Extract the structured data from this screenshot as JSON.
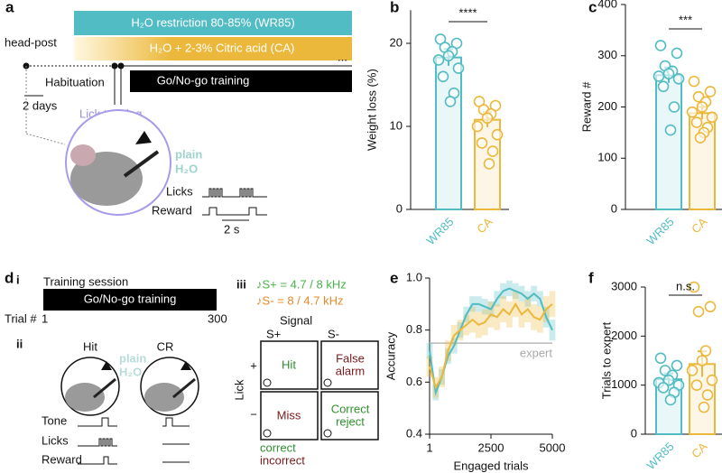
{
  "panel_a": {
    "label": "a",
    "restriction": "H₂O restriction 80-85% (WR85)",
    "citric": "H₂O + 2-3% Citric acid (CA)",
    "head_post": "head-post",
    "ellipsis": "...",
    "habituation": "Habituation",
    "scale_days": "2 days",
    "lick_training": "Lick training",
    "training": "Go/No-go training",
    "plain": "plain",
    "water": "H₂O",
    "licks": "Licks",
    "reward": "Reward",
    "scale_time": "2 s"
  },
  "panel_d": {
    "label": "d",
    "sub_i": "i",
    "session": "Training session",
    "training": "Go/No-go training",
    "trial": "Trial #",
    "trial_start": 1,
    "trial_end": 300,
    "sub_ii": "ii",
    "hit": "Hit",
    "cr": "CR",
    "plain": "plain",
    "water": "H₂O",
    "tone": "Tone",
    "licks": "Licks",
    "reward": "Reward",
    "sub_iii": "iii",
    "s_plus_freq": "♪S+ = 4.7 / 8 kHz",
    "s_minus_freq": "♪S- = 8 / 4.7 kHz",
    "signal": "Signal",
    "s_plus": "S+",
    "s_minus": "S-",
    "lick": "Lick",
    "lick_yes": "+",
    "lick_no": "−",
    "cells": [
      [
        "Hit"
      ],
      [
        "False",
        "alarm"
      ],
      [
        "Miss"
      ],
      [
        "Correct",
        "reject"
      ]
    ],
    "correct": "correct",
    "incorrect": "incorrect"
  },
  "chart_data": [
    {
      "type": "bar",
      "panel_label": "b",
      "ylabel": "Weight loss (%)",
      "categories": [
        "WR85",
        "CA"
      ],
      "colors": [
        "#52bcc4",
        "#ecb83c"
      ],
      "values": [
        18.3,
        10.8
      ],
      "errors": [
        1.0,
        0.9
      ],
      "points": [
        [
          20.5,
          20,
          19.5,
          19,
          18.5,
          18,
          17,
          16,
          14,
          13
        ],
        [
          13,
          12.5,
          12,
          11.5,
          11,
          10,
          9,
          8,
          7,
          5.5
        ]
      ],
      "ylim": [
        0,
        24
      ],
      "yticks": [
        0,
        10,
        20
      ],
      "significance": "****"
    },
    {
      "type": "bar",
      "panel_label": "c",
      "ylabel": "Reward #",
      "categories": [
        "WR85",
        "CA"
      ],
      "colors": [
        "#52bcc4",
        "#ecb83c"
      ],
      "values": [
        262,
        188
      ],
      "errors": [
        15,
        12
      ],
      "points": [
        [
          320,
          305,
          280,
          270,
          265,
          260,
          255,
          240,
          200,
          155
        ],
        [
          250,
          230,
          220,
          210,
          200,
          190,
          180,
          170,
          160,
          150,
          140
        ]
      ],
      "ylim": [
        0,
        400
      ],
      "yticks": [
        0,
        100,
        200,
        300,
        400
      ],
      "significance": "***"
    },
    {
      "type": "line",
      "panel_label": "e",
      "xlabel": "Engaged trials",
      "ylabel": "Accuracy",
      "x": [
        1,
        250,
        500,
        750,
        1000,
        1250,
        1500,
        1750,
        2000,
        2250,
        2500,
        2750,
        3000,
        3250,
        3500,
        3750,
        4000,
        4250,
        4500,
        4750,
        5000
      ],
      "series": [
        {
          "name": "WR85",
          "color": "#52bcc4",
          "values": [
            0.72,
            0.56,
            0.62,
            0.7,
            0.74,
            0.8,
            0.86,
            0.9,
            0.9,
            0.89,
            0.88,
            0.92,
            0.95,
            0.96,
            0.95,
            0.94,
            0.92,
            0.94,
            0.92,
            0.85,
            0.8
          ],
          "errors": [
            0.03,
            0.03,
            0.03,
            0.03,
            0.03,
            0.03,
            0.03,
            0.03,
            0.03,
            0.03,
            0.03,
            0.03,
            0.03,
            0.03,
            0.03,
            0.03,
            0.03,
            0.03,
            0.03,
            0.04,
            0.04
          ]
        },
        {
          "name": "CA",
          "color": "#ecb83c",
          "values": [
            0.66,
            0.58,
            0.62,
            0.72,
            0.78,
            0.8,
            0.82,
            0.84,
            0.82,
            0.83,
            0.86,
            0.85,
            0.88,
            0.86,
            0.9,
            0.86,
            0.88,
            0.85,
            0.84,
            0.88,
            0.9
          ],
          "errors": [
            0.04,
            0.04,
            0.04,
            0.04,
            0.04,
            0.04,
            0.04,
            0.05,
            0.05,
            0.05,
            0.05,
            0.05,
            0.05,
            0.05,
            0.05,
            0.05,
            0.05,
            0.05,
            0.05,
            0.05,
            0.05
          ]
        }
      ],
      "xlim": [
        1,
        5000
      ],
      "xticks": [
        1,
        2500,
        5000
      ],
      "ylim": [
        0.4,
        1.0
      ],
      "yticks": [
        0.4,
        0.6,
        0.8,
        {
          "value": 1.0,
          "label": "1.0"
        }
      ],
      "reference": {
        "value": 0.75,
        "label": "expert"
      }
    },
    {
      "type": "bar",
      "panel_label": "f",
      "ylabel": "Trials to expert",
      "categories": [
        "WR85",
        "CA"
      ],
      "colors": [
        "#52bcc4",
        "#ecb83c"
      ],
      "values": [
        1120,
        1430
      ],
      "errors": [
        120,
        260
      ],
      "points": [
        [
          1550,
          1400,
          1300,
          1200,
          1100,
          1050,
          1000,
          950,
          850,
          700
        ],
        [
          3000,
          2600,
          2500,
          1700,
          1500,
          1300,
          1100,
          1000,
          800,
          550
        ]
      ],
      "ylim": [
        0,
        3000
      ],
      "yticks": [
        0,
        1000,
        2000,
        3000
      ],
      "significance": "n.s."
    }
  ]
}
